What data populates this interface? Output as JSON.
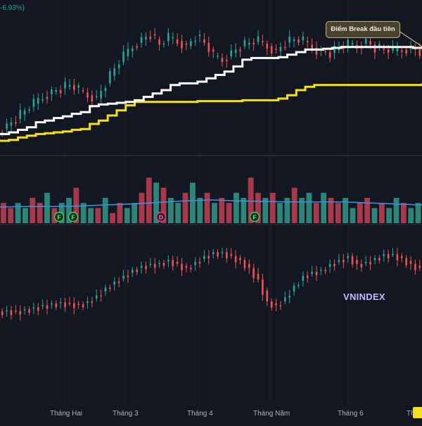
{
  "pct_label": "-6.93%)",
  "callout": "Điểm Break đầu tiên",
  "index_name": "VNINDEX",
  "months": [
    "Tháng Hai",
    "Tháng 3",
    "Tháng 4",
    "Tháng Năm",
    "Tháng 6",
    "Th"
  ],
  "chart_data": [
    {
      "type": "line",
      "title": "",
      "series": [
        {
          "values": [
            0.8,
            1.0,
            1.3,
            1.6,
            2.2,
            2.4,
            2.7,
            2.9,
            3.2,
            3.4,
            4.1,
            4.3,
            4.4,
            4.5,
            4.6,
            4.8,
            5.2,
            5.6,
            6.0,
            6.6,
            6.8,
            6.8,
            7.0,
            7.4,
            7.8,
            8.2,
            8.8,
            9.6,
            9.8,
            9.8,
            9.8,
            9.9,
            10.2,
            10.5,
            10.8,
            10.8,
            10.9,
            11.0,
            11.1,
            11.1,
            11.1,
            11.1,
            11.1,
            11.1,
            11.1,
            11.1,
            11.0,
            11.0
          ]
        },
        {
          "values": [
            0.0,
            0.1,
            0.4,
            0.6,
            0.8,
            0.9,
            1.0,
            1.1,
            1.3,
            1.4,
            2.0,
            2.4,
            3.0,
            3.6,
            4.2,
            4.6,
            4.6,
            4.6,
            4.6,
            4.6,
            4.6,
            4.6,
            4.7,
            4.7,
            4.7,
            4.7,
            4.7,
            4.8,
            4.8,
            4.8,
            4.8,
            5.0,
            5.4,
            6.0,
            6.4,
            6.6,
            6.6,
            6.6,
            6.6,
            6.6,
            6.6,
            6.6,
            6.6,
            6.6,
            6.6,
            6.6,
            6.6,
            6.8
          ]
        }
      ],
      "price": [
        1.0,
        1.8,
        2.6,
        3.6,
        4.4,
        5.2,
        5.8,
        6.2,
        6.6,
        6.0,
        5.4,
        5.0,
        6.8,
        8.6,
        10.0,
        11.2,
        12.0,
        12.6,
        11.4,
        12.2,
        11.8,
        11.2,
        12.4,
        11.6,
        10.0,
        9.6,
        10.4,
        11.2,
        11.6,
        11.8,
        11.2,
        10.6,
        11.6,
        12.0,
        11.8,
        11.0,
        10.6,
        10.4,
        11.0,
        11.4,
        11.2,
        11.8,
        11.0,
        10.8,
        10.6,
        10.8,
        11.0,
        10.6
      ]
    },
    {
      "type": "bar",
      "title": "",
      "values": [
        4,
        3,
        4,
        3,
        5,
        4,
        6,
        3,
        4,
        5,
        7,
        4,
        3,
        3,
        5,
        2,
        4,
        3,
        4,
        6,
        9,
        8,
        7,
        5,
        4,
        6,
        8,
        5,
        6,
        4,
        5,
        4,
        6,
        5,
        9,
        6,
        5,
        6,
        4,
        5,
        7,
        5,
        6,
        4,
        6,
        5,
        4,
        5,
        3,
        4,
        5,
        3,
        4,
        3,
        5,
        4,
        3,
        4
      ],
      "avg_line": [
        3.2,
        3.3,
        3.3,
        3.4,
        3.6,
        3.8,
        4.1,
        4.4,
        4.6,
        4.4,
        4.3,
        4.2,
        4.2,
        4.2,
        4.0,
        3.8,
        3.6
      ],
      "signals": [
        "F",
        "F",
        "D",
        "F"
      ]
    },
    {
      "type": "line",
      "title": "",
      "series": [
        {
          "name": "VNINDEX",
          "values": [
            2.0,
            2.1,
            2.0,
            2.2,
            2.4,
            2.6,
            2.8,
            2.9,
            2.8,
            2.7,
            3.0,
            3.6,
            4.4,
            5.0,
            5.6,
            6.2,
            6.6,
            6.8,
            6.9,
            7.2,
            6.8,
            6.4,
            7.0,
            7.6,
            8.0,
            8.0,
            7.6,
            7.2,
            6.4,
            5.2,
            3.0,
            2.6,
            3.4,
            4.6,
            5.6,
            6.0,
            6.2,
            6.8,
            7.2,
            7.6,
            6.8,
            7.0,
            7.4,
            7.8,
            7.8,
            7.4,
            6.8,
            6.4
          ]
        }
      ]
    }
  ]
}
